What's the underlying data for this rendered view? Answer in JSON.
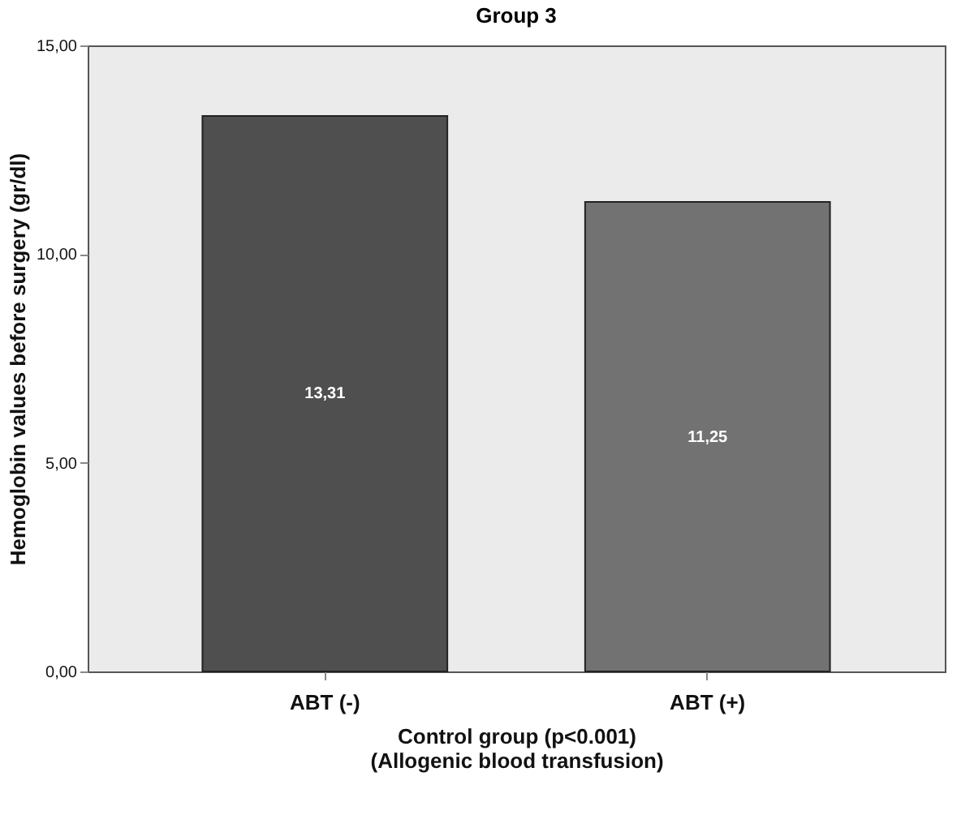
{
  "chart_data": {
    "type": "bar",
    "title": "Group 3",
    "xlabel": "Control group (p<0.001)\n(Allogenic blood transfusion)",
    "ylabel": "Hemoglobin values before surgery (gr/dl)",
    "categories": [
      "ABT (-)",
      "ABT (+)"
    ],
    "values": [
      13.31,
      11.25
    ],
    "colors": [
      "#4f4f4f",
      "#727272"
    ],
    "value_labels": [
      "13,31",
      "11,25"
    ],
    "ylim": [
      0,
      15
    ],
    "yticks": [
      {
        "value": 0,
        "label": "0,00"
      },
      {
        "value": 5,
        "label": "5,00"
      },
      {
        "value": 10,
        "label": "10,00"
      },
      {
        "value": 15,
        "label": "15,00"
      }
    ],
    "grid": false
  }
}
